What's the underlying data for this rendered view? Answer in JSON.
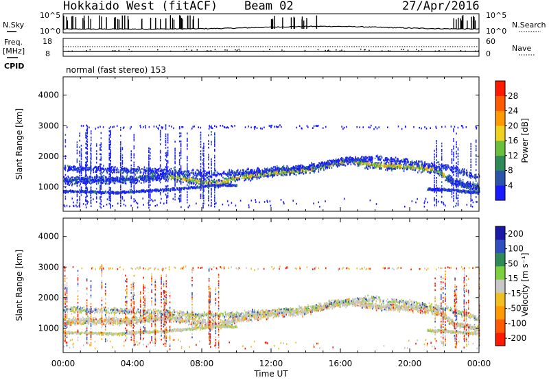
{
  "header": {
    "radar": "Hokkaido West (fitACF)",
    "beam": "Beam 02",
    "date": "27/Apr/2016",
    "cpid_text": "normal (fast stereo) 153"
  },
  "sky_noise_panel": {
    "left_label": "N.Sky",
    "right_label": "N.Search",
    "left_ticks": [
      "10^5",
      "10^0"
    ],
    "right_ticks": [
      "10^5",
      "10^0"
    ]
  },
  "freq_panel": {
    "left_label_1": "Freq.",
    "left_label_2": "[MHz]",
    "left_ticks": [
      "18",
      "8"
    ],
    "right_label": "Nave",
    "right_ticks": [
      "60",
      "0"
    ],
    "cpid_label": "CPID"
  },
  "chart_data": [
    {
      "type": "heatmap",
      "name": "power",
      "xlabel": "",
      "ylabel": "Slant Range [km]",
      "ylim": [
        200,
        4600
      ],
      "yticks": [
        "1000",
        "2000",
        "3000",
        "4000"
      ],
      "colorbar": {
        "label": "Power [dB]",
        "ticks": [
          "4",
          "8",
          "12",
          "16",
          "20",
          "24",
          "28"
        ],
        "colors": [
          "#1a1aff",
          "#2a55aa",
          "#2e8b57",
          "#6cbf3a",
          "#f0d020",
          "#ff9a00",
          "#ff5a00",
          "#ff1a00"
        ]
      },
      "ridge_km": [
        [
          0,
          1200
        ],
        [
          2,
          1220
        ],
        [
          4,
          1230
        ],
        [
          6,
          1350
        ],
        [
          8,
          1150
        ],
        [
          9,
          1100
        ],
        [
          10,
          1300
        ],
        [
          12,
          1450
        ],
        [
          14,
          1550
        ],
        [
          15.5,
          1750
        ],
        [
          16.5,
          1850
        ],
        [
          18,
          1700
        ],
        [
          20,
          1650
        ],
        [
          21.5,
          1550
        ],
        [
          22.5,
          1150
        ],
        [
          24,
          950
        ]
      ],
      "secondary_ridge_km": [
        [
          0,
          1600
        ],
        [
          3,
          1550
        ],
        [
          6,
          1500
        ],
        [
          8,
          1400
        ],
        [
          10,
          1450
        ],
        [
          12,
          1550
        ],
        [
          14,
          1620
        ],
        [
          16,
          1850
        ],
        [
          18,
          1950
        ],
        [
          20,
          1800
        ],
        [
          22,
          1650
        ],
        [
          24,
          1300
        ]
      ],
      "lower_band_km": [
        [
          0,
          850
        ],
        [
          3,
          800
        ],
        [
          6,
          900
        ],
        [
          8,
          1000
        ],
        [
          9,
          1050
        ],
        [
          22,
          900
        ],
        [
          24,
          800
        ]
      ]
    },
    {
      "type": "heatmap",
      "name": "velocity",
      "xlabel": "Time UT",
      "ylabel": "Slant Range [km]",
      "ylim": [
        200,
        4600
      ],
      "yticks": [
        "1000",
        "2000",
        "3000",
        "4000"
      ],
      "xticks": [
        "00:00",
        "04:00",
        "08:00",
        "12:00",
        "16:00",
        "20:00",
        "00:00"
      ],
      "xlim_hours": [
        0,
        24
      ],
      "colorbar": {
        "label": "Velocity [m s⁻¹]",
        "ticks": [
          "200",
          "100",
          "50",
          "15",
          "-15",
          "-50",
          "-100",
          "-200"
        ],
        "colors": [
          "#1a1aa8",
          "#3050c0",
          "#2e8b57",
          "#7cd040",
          "#c8c8c8",
          "#f0c020",
          "#ff9a00",
          "#ff5a00",
          "#ff1a00"
        ]
      }
    }
  ]
}
